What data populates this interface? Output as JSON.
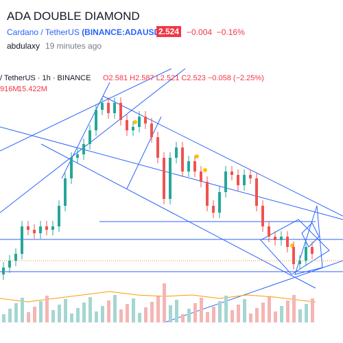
{
  "header": {
    "title": "ADA DOUBLE DIAMOND",
    "symbol_name": "Cardano / TetherUS",
    "symbol_code": "(BINANCE:ADAUSDT)",
    "price": "2.524",
    "change": "−0.004",
    "change_pct": "−0.16%",
    "author": "abdulaxy",
    "time": "19 minutes ago"
  },
  "chart": {
    "legend": "/ TetherUS · 1h · BINANCE",
    "ohlc": "O2.581 H2.587 L2.521 C2.523 −0.058 (−2.25%)",
    "volume": "916M",
    "volume_ma": "15.422M"
  }
}
